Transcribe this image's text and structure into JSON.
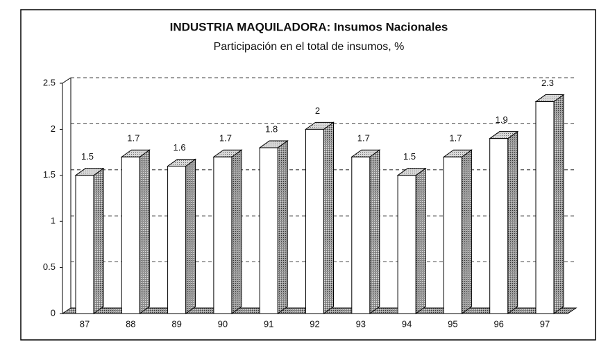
{
  "chart_data": {
    "type": "bar3d",
    "title": "INDUSTRIA MAQUILADORA: Insumos Nacionales",
    "subtitle": "Participación en el total de insumos, %",
    "categories": [
      "87",
      "88",
      "89",
      "90",
      "91",
      "92",
      "93",
      "94",
      "95",
      "96",
      "97"
    ],
    "values": [
      1.5,
      1.7,
      1.6,
      1.7,
      1.8,
      2,
      1.7,
      1.5,
      1.7,
      1.9,
      2.3
    ],
    "color": "#ffffff",
    "ylim": [
      0,
      2.5
    ],
    "yticks": [
      0,
      0.5,
      1,
      1.5,
      2,
      2.5
    ],
    "grid": true
  }
}
